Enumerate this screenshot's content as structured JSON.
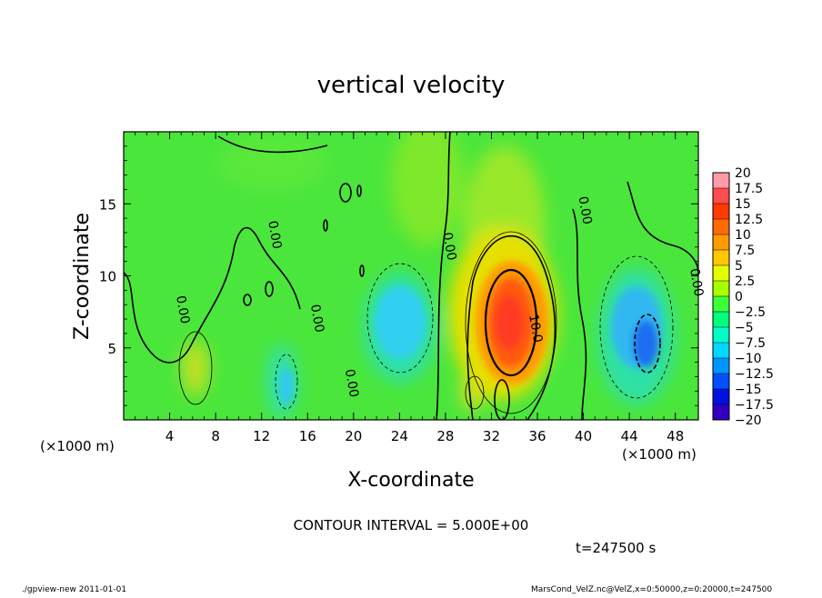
{
  "chart_data": {
    "type": "heatmap",
    "title": "vertical velocity",
    "xlabel": "X-coordinate",
    "ylabel": "Z-coordinate",
    "x_unit": "(×1000 m)",
    "x_unit_right": "(×1000 m)",
    "xlim": [
      0,
      50
    ],
    "ylim": [
      0,
      20
    ],
    "x_ticks": [
      4,
      8,
      12,
      16,
      20,
      24,
      28,
      32,
      36,
      40,
      44,
      48
    ],
    "y_ticks": [
      5,
      10,
      15
    ],
    "colorbar_labels": [
      "20",
      "17.5",
      "15",
      "12.5",
      "10",
      "7.5",
      "5",
      "2.5",
      "0",
      "−2.5",
      "−5",
      "−7.5",
      "−10",
      "−12.5",
      "−15",
      "−17.5",
      "−20"
    ],
    "colorbar_colors": [
      "#ff9aa8",
      "#ff4c4c",
      "#ff3a00",
      "#ff6a00",
      "#ff9a00",
      "#ffc800",
      "#e6ff00",
      "#a8ff00",
      "#3cff3c",
      "#00ff7a",
      "#00ffc8",
      "#00d8ff",
      "#0096ff",
      "#0050ff",
      "#0010e0",
      "#3000c0",
      "#7000b0"
    ],
    "contour_labels": [
      {
        "text": "0.00",
        "x": 4.8,
        "y": 7.6
      },
      {
        "text": "0.00",
        "x": 12.8,
        "y": 12.8
      },
      {
        "text": "0.00",
        "x": 16.5,
        "y": 7.0
      },
      {
        "text": "0.00",
        "x": 19.5,
        "y": 2.5
      },
      {
        "text": "0.00",
        "x": 28.0,
        "y": 12.0
      },
      {
        "text": "10.0",
        "x": 35.5,
        "y": 6.3
      },
      {
        "text": "0.00",
        "x": 39.8,
        "y": 14.5
      },
      {
        "text": "0.00",
        "x": 49.5,
        "y": 9.5
      }
    ],
    "features": [
      {
        "kind": "updraft",
        "x": 33,
        "z": 7,
        "peak": 16
      },
      {
        "kind": "downdraft",
        "x": 24,
        "z": 7,
        "peak": -7.5
      },
      {
        "kind": "downdraft",
        "x": 45,
        "z": 6,
        "peak": -12
      }
    ]
  },
  "contour_interval_text": "CONTOUR INTERVAL = 5.000E+00",
  "time_text": "t=247500 s",
  "footer_left": "./gpview-new   2011-01-01",
  "footer_right": "MarsCond_VelZ.nc@VelZ,x=0:50000,z=0:20000,t=247500"
}
